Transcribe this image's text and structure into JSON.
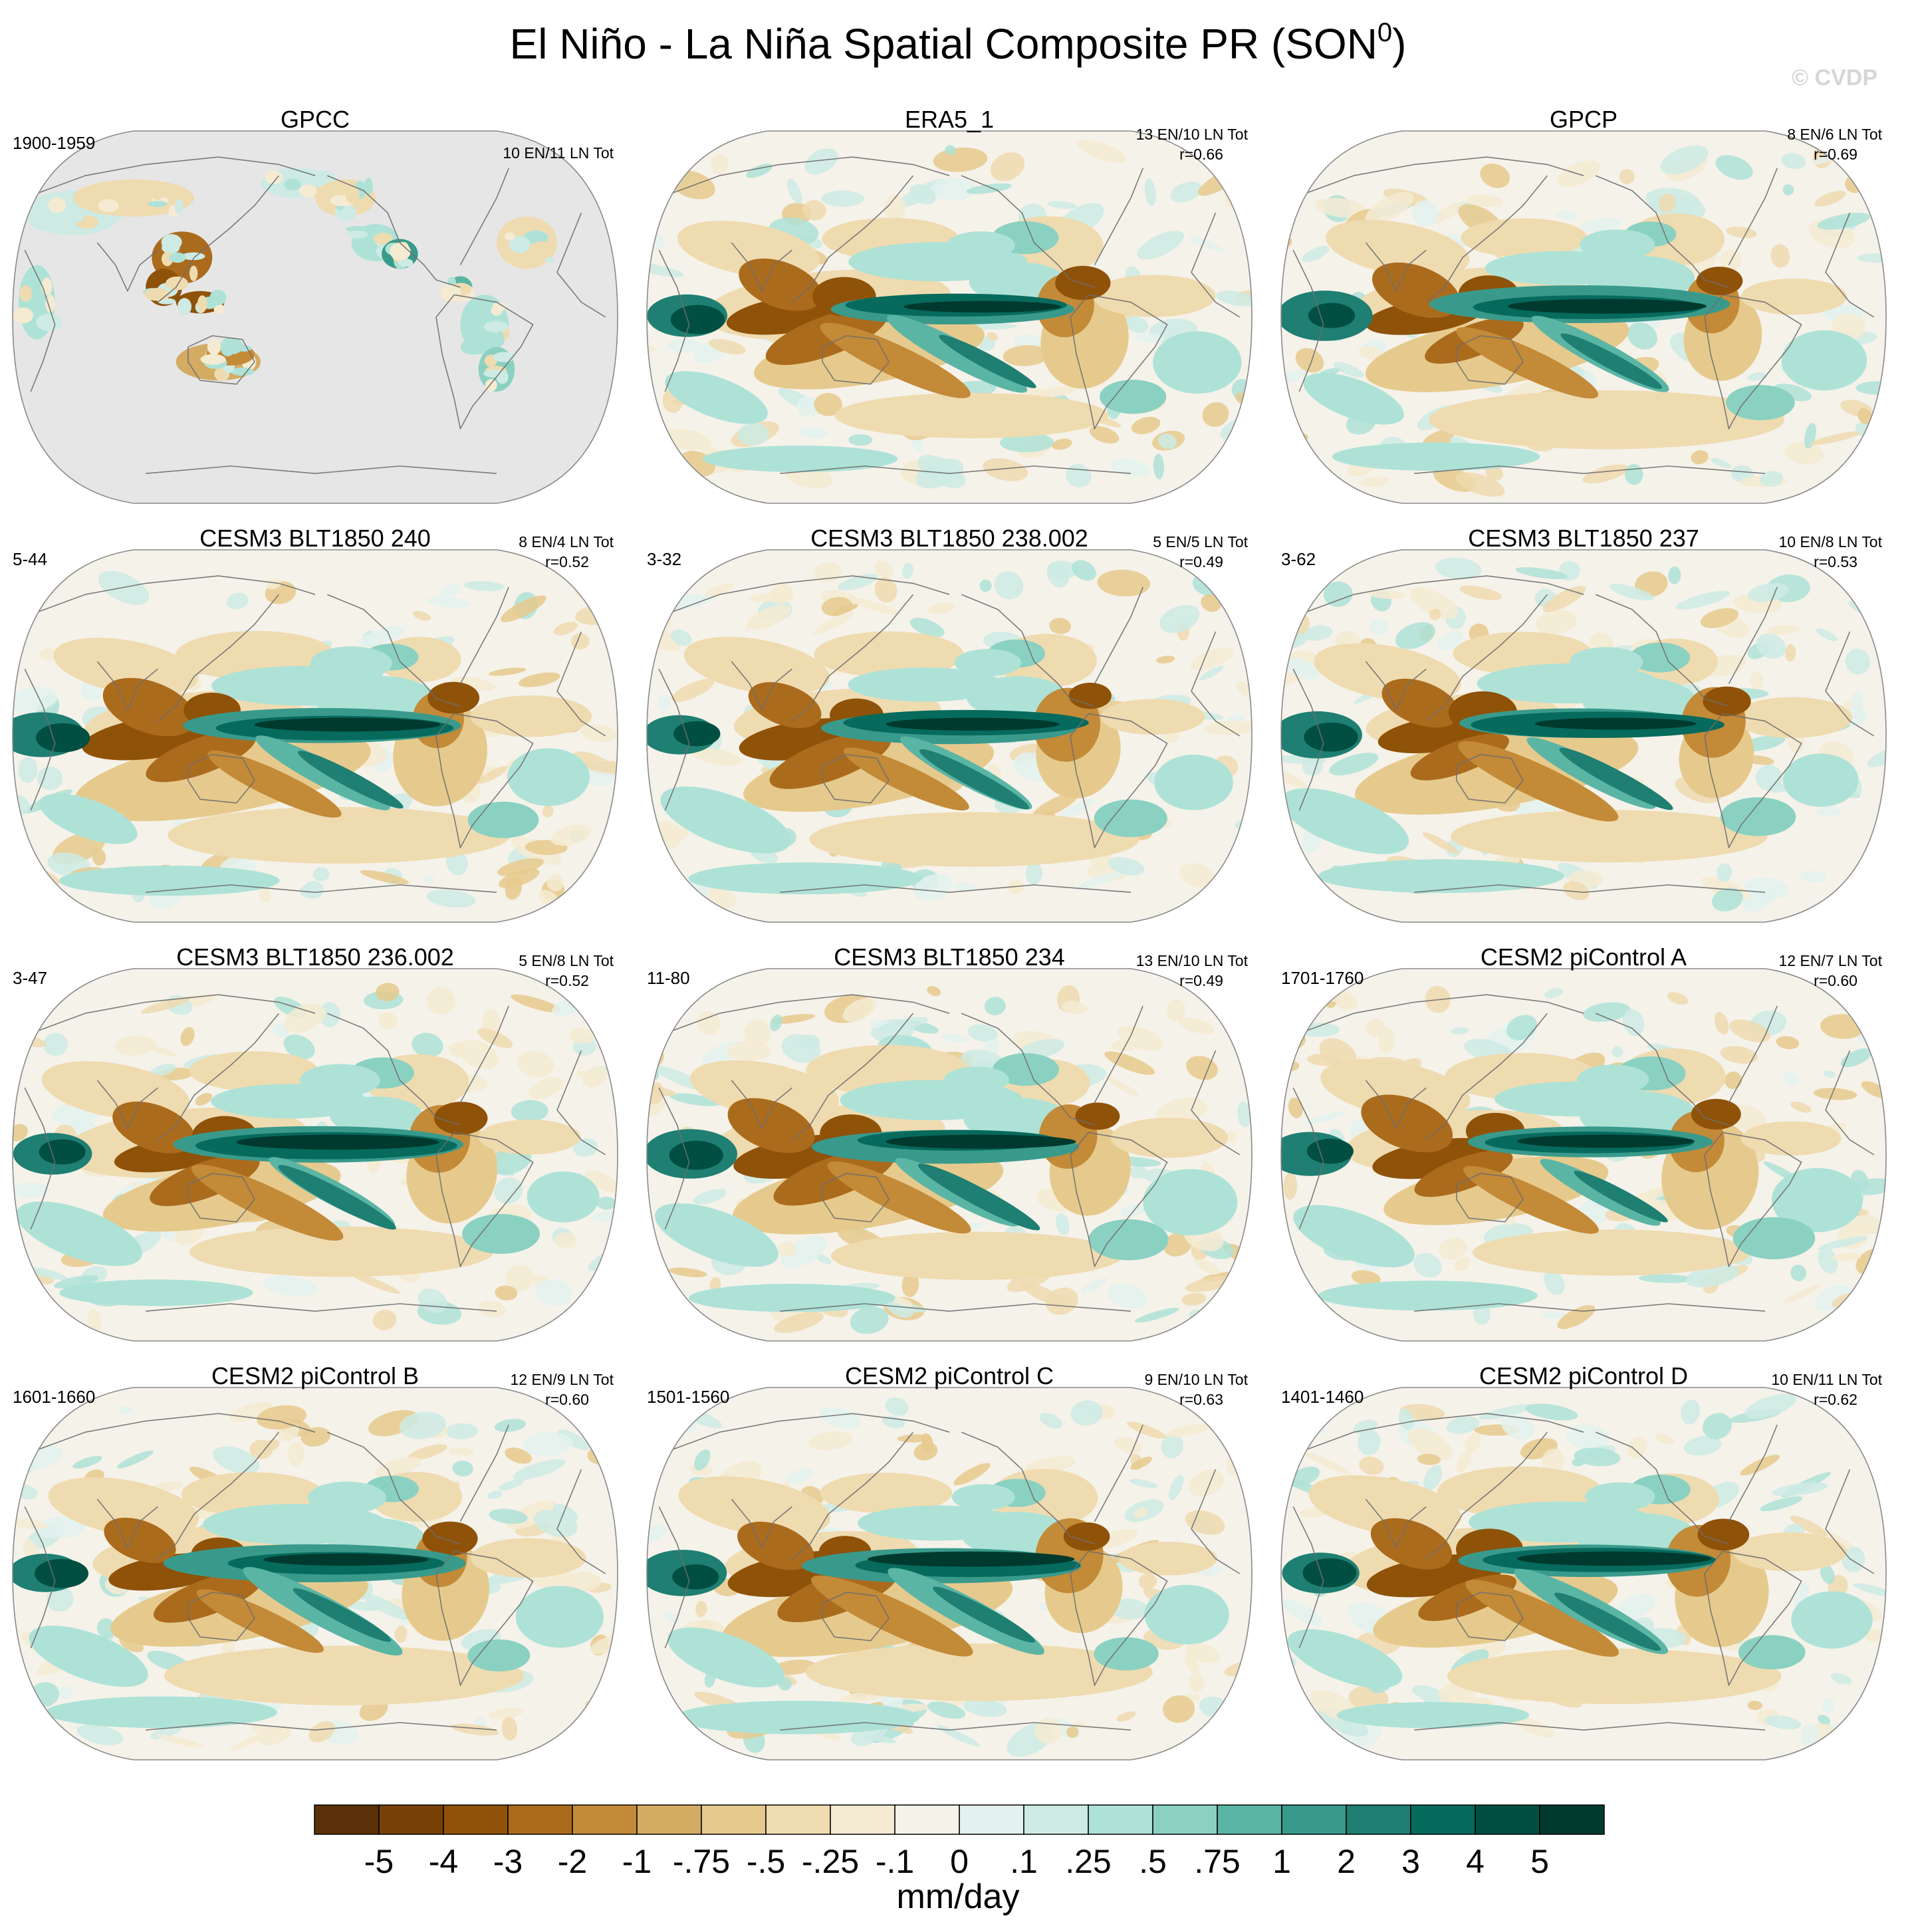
{
  "figure": {
    "title": "El Niño - La Niña Spatial Composite PR (SON",
    "title_sup": "0",
    "title_close": ")",
    "watermark": "© CVDP"
  },
  "panels": [
    {
      "name": "GPCC",
      "years": "1900-1959",
      "counts": "10 EN/11 LN Tot",
      "corr": "",
      "style": "obs_land"
    },
    {
      "name": "ERA5_1",
      "years": "",
      "counts": "13 EN/10 LN Tot",
      "corr": "r=0.66",
      "style": "obs"
    },
    {
      "name": "GPCP",
      "years": "",
      "counts": "8 EN/6 LN Tot",
      "corr": "r=0.69",
      "style": "obs"
    },
    {
      "name": "CESM3 BLT1850 240",
      "years": "5-44",
      "counts": "8 EN/4 LN Tot",
      "corr": "r=0.52",
      "style": "model"
    },
    {
      "name": "CESM3 BLT1850 238.002",
      "years": "3-32",
      "counts": "5 EN/5 LN Tot",
      "corr": "r=0.49",
      "style": "model"
    },
    {
      "name": "CESM3 BLT1850 237",
      "years": "3-62",
      "counts": "10 EN/8 LN Tot",
      "corr": "r=0.53",
      "style": "model"
    },
    {
      "name": "CESM3 BLT1850 236.002",
      "years": "3-47",
      "counts": "5 EN/8 LN Tot",
      "corr": "r=0.52",
      "style": "model"
    },
    {
      "name": "CESM3 BLT1850 234",
      "years": "11-80",
      "counts": "13 EN/10 LN Tot",
      "corr": "r=0.49",
      "style": "model"
    },
    {
      "name": "CESM2 piControl A",
      "years": "1701-1760",
      "counts": "12 EN/7 LN Tot",
      "corr": "r=0.60",
      "style": "model"
    },
    {
      "name": "CESM2 piControl B",
      "years": "1601-1660",
      "counts": "12 EN/9 LN Tot",
      "corr": "r=0.60",
      "style": "model"
    },
    {
      "name": "CESM2 piControl C",
      "years": "1501-1560",
      "counts": "9 EN/10 LN Tot",
      "corr": "r=0.63",
      "style": "model"
    },
    {
      "name": "CESM2 piControl D",
      "years": "1401-1460",
      "counts": "10 EN/11 LN Tot",
      "corr": "r=0.62",
      "style": "model"
    }
  ],
  "colorbar": {
    "labels": [
      "-5",
      "-4",
      "-3",
      "-2",
      "-1",
      "-.75",
      "-.5",
      "-.25",
      "-.1",
      "0",
      ".1",
      ".25",
      ".5",
      ".75",
      "1",
      "2",
      "3",
      "4",
      "5"
    ],
    "colors": [
      "#5a3108",
      "#774108",
      "#8f5209",
      "#ab6b1d",
      "#c38a38",
      "#d4ab62",
      "#e6ca8d",
      "#efdbb0",
      "#f5ebd2",
      "#f5f2ea",
      "#e3f2ee",
      "#cdebe4",
      "#aee2d7",
      "#8bd1c2",
      "#5bb5a5",
      "#399a8c",
      "#1e7f72",
      "#066a5d",
      "#004f42",
      "#003a2e"
    ],
    "unit": "mm/day"
  },
  "chart_data": {
    "type": "heatmap",
    "title": "El Niño - La Niña Spatial Composite PR (SON0)",
    "projection": "Robinson (global, centered on the Pacific)",
    "variable": "PR",
    "units": "mm/day",
    "levels": [
      -5,
      -4,
      -3,
      -2,
      -1,
      -0.75,
      -0.5,
      -0.25,
      -0.1,
      0,
      0.1,
      0.25,
      0.5,
      0.75,
      1,
      2,
      3,
      4,
      5
    ],
    "panels": [
      "GPCC",
      "ERA5_1",
      "GPCP",
      "CESM3 BLT1850 240",
      "CESM3 BLT1850 238.002",
      "CESM3 BLT1850 237",
      "CESM3 BLT1850 236.002",
      "CESM3 BLT1850 234",
      "CESM2 piControl A",
      "CESM2 piControl B",
      "CESM2 piControl C",
      "CESM2 piControl D"
    ],
    "pattern_correlation": [
      null,
      0.66,
      0.69,
      0.52,
      0.49,
      0.53,
      0.52,
      0.49,
      0.6,
      0.6,
      0.63,
      0.62
    ],
    "el_nino_events": [
      10,
      13,
      8,
      8,
      5,
      10,
      5,
      13,
      12,
      12,
      9,
      10
    ],
    "la_nina_events": [
      11,
      10,
      6,
      4,
      5,
      8,
      8,
      10,
      7,
      9,
      10,
      11
    ]
  }
}
